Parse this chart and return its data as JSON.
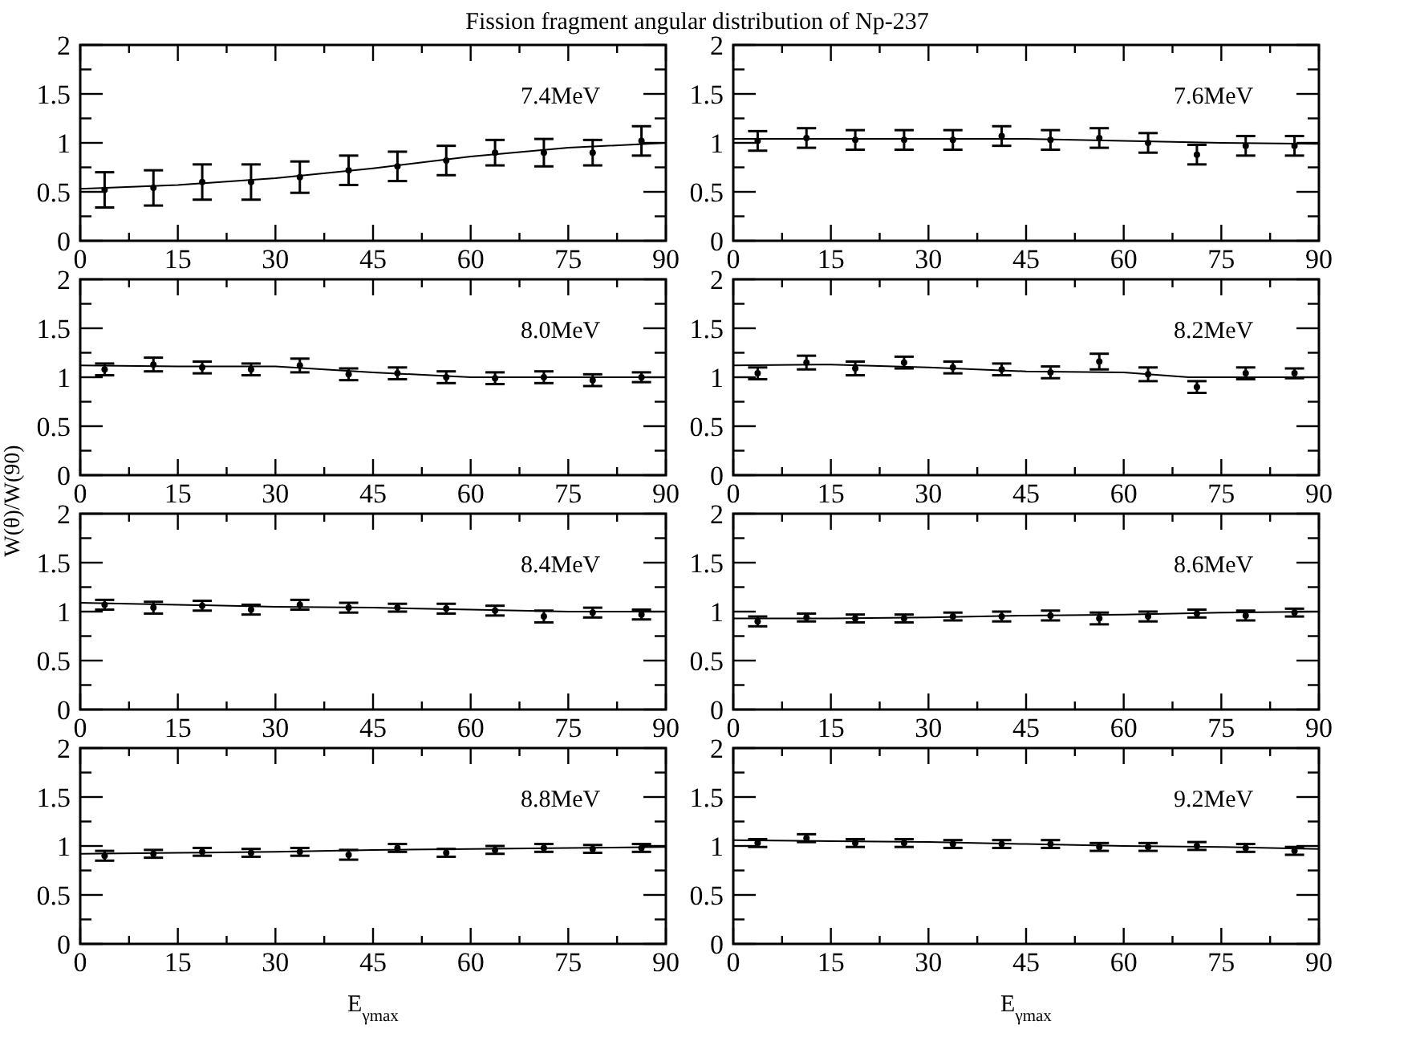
{
  "chart_data": [
    {
      "type": "scatter",
      "title": "Fission fragment angular distribution of Np-237",
      "annotations": [
        "7.4MeV"
      ],
      "x": [
        3.75,
        11.25,
        18.75,
        26.25,
        33.75,
        41.25,
        48.75,
        56.25,
        63.75,
        71.25,
        78.75,
        86.25
      ],
      "xlim": [
        0,
        90
      ],
      "ylim": [
        0,
        2
      ],
      "xticks": [
        0,
        {
          "value": 7.5,
          "label": null
        },
        15,
        {
          "value": 22.5,
          "label": null
        },
        30,
        {
          "value": 37.5,
          "label": null
        },
        45,
        {
          "value": 52.5,
          "label": null
        },
        60,
        {
          "value": 67.5,
          "label": null
        },
        75,
        {
          "value": 82.5,
          "label": null
        },
        90
      ],
      "yticks": [
        0,
        {
          "value": 0.25,
          "label": null
        },
        0.5,
        {
          "value": 0.75,
          "label": null
        },
        1,
        {
          "value": 1.25,
          "label": null
        },
        1.5,
        {
          "value": 1.75,
          "label": null
        },
        2
      ],
      "series": [
        {
          "type": "scatter",
          "marker": "circle",
          "color": "#000000",
          "values": [
            0.52,
            0.54,
            0.6,
            0.6,
            0.65,
            0.72,
            0.76,
            0.82,
            0.9,
            0.9,
            0.9,
            1.02
          ],
          "errors": [
            0.18,
            0.18,
            0.18,
            0.18,
            0.16,
            0.15,
            0.15,
            0.15,
            0.13,
            0.14,
            0.13,
            0.15
          ]
        },
        {
          "type": "line",
          "color": "#000000",
          "x": [
            0,
            15,
            30,
            45,
            60,
            75,
            90
          ],
          "values": [
            0.53,
            0.57,
            0.64,
            0.74,
            0.86,
            0.95,
            1.0
          ]
        }
      ]
    },
    {
      "type": "scatter",
      "annotations": [
        "7.6MeV"
      ],
      "x": [
        3.75,
        11.25,
        18.75,
        26.25,
        33.75,
        41.25,
        48.75,
        56.25,
        63.75,
        71.25,
        78.75,
        86.25
      ],
      "xlim": [
        0,
        90
      ],
      "ylim": [
        0,
        2
      ],
      "xticks": [
        0,
        {
          "value": 7.5,
          "label": null
        },
        15,
        {
          "value": 22.5,
          "label": null
        },
        30,
        {
          "value": 37.5,
          "label": null
        },
        45,
        {
          "value": 52.5,
          "label": null
        },
        60,
        {
          "value": 67.5,
          "label": null
        },
        75,
        {
          "value": 82.5,
          "label": null
        },
        90
      ],
      "yticks": [
        0,
        {
          "value": 0.25,
          "label": null
        },
        0.5,
        {
          "value": 0.75,
          "label": null
        },
        1,
        {
          "value": 1.25,
          "label": null
        },
        1.5,
        {
          "value": 1.75,
          "label": null
        },
        2
      ],
      "series": [
        {
          "type": "scatter",
          "marker": "circle",
          "color": "#000000",
          "values": [
            1.02,
            1.05,
            1.03,
            1.03,
            1.03,
            1.07,
            1.03,
            1.05,
            1.0,
            0.88,
            0.97,
            0.97
          ],
          "errors": [
            0.1,
            0.1,
            0.1,
            0.1,
            0.1,
            0.1,
            0.1,
            0.1,
            0.1,
            0.1,
            0.1,
            0.1
          ]
        },
        {
          "type": "line",
          "color": "#000000",
          "x": [
            0,
            15,
            30,
            45,
            60,
            75,
            90
          ],
          "values": [
            1.04,
            1.04,
            1.04,
            1.04,
            1.02,
            1.0,
            0.99
          ]
        }
      ]
    },
    {
      "type": "scatter",
      "annotations": [
        "8.0MeV"
      ],
      "x": [
        3.75,
        11.25,
        18.75,
        26.25,
        33.75,
        41.25,
        48.75,
        56.25,
        63.75,
        71.25,
        78.75,
        86.25
      ],
      "xlim": [
        0,
        90
      ],
      "ylim": [
        0,
        2
      ],
      "xticks": [
        0,
        {
          "value": 7.5,
          "label": null
        },
        15,
        {
          "value": 22.5,
          "label": null
        },
        30,
        {
          "value": 37.5,
          "label": null
        },
        45,
        {
          "value": 52.5,
          "label": null
        },
        60,
        {
          "value": 67.5,
          "label": null
        },
        75,
        {
          "value": 82.5,
          "label": null
        },
        90
      ],
      "yticks": [
        0,
        {
          "value": 0.25,
          "label": null
        },
        0.5,
        {
          "value": 0.75,
          "label": null
        },
        1,
        {
          "value": 1.25,
          "label": null
        },
        1.5,
        {
          "value": 1.75,
          "label": null
        },
        2
      ],
      "series": [
        {
          "type": "scatter",
          "marker": "circle",
          "color": "#000000",
          "values": [
            1.08,
            1.13,
            1.1,
            1.08,
            1.12,
            1.03,
            1.04,
            1.0,
            0.99,
            1.0,
            0.97,
            1.0
          ],
          "errors": [
            0.06,
            0.07,
            0.06,
            0.06,
            0.07,
            0.06,
            0.06,
            0.06,
            0.06,
            0.06,
            0.06,
            0.05
          ]
        },
        {
          "type": "line",
          "color": "#000000",
          "x": [
            0,
            15,
            30,
            45,
            60,
            75,
            90
          ],
          "values": [
            1.12,
            1.11,
            1.11,
            1.05,
            1.0,
            1.0,
            1.0
          ]
        }
      ]
    },
    {
      "type": "scatter",
      "annotations": [
        "8.2MeV"
      ],
      "x": [
        3.75,
        11.25,
        18.75,
        26.25,
        33.75,
        41.25,
        48.75,
        56.25,
        63.75,
        71.25,
        78.75,
        86.25
      ],
      "xlim": [
        0,
        90
      ],
      "ylim": [
        0,
        2
      ],
      "xticks": [
        0,
        {
          "value": 7.5,
          "label": null
        },
        15,
        {
          "value": 22.5,
          "label": null
        },
        30,
        {
          "value": 37.5,
          "label": null
        },
        45,
        {
          "value": 52.5,
          "label": null
        },
        60,
        {
          "value": 67.5,
          "label": null
        },
        75,
        {
          "value": 82.5,
          "label": null
        },
        90
      ],
      "yticks": [
        0,
        {
          "value": 0.25,
          "label": null
        },
        0.5,
        {
          "value": 0.75,
          "label": null
        },
        1,
        {
          "value": 1.25,
          "label": null
        },
        1.5,
        {
          "value": 1.75,
          "label": null
        },
        2
      ],
      "series": [
        {
          "type": "scatter",
          "marker": "circle",
          "color": "#000000",
          "values": [
            1.04,
            1.15,
            1.09,
            1.15,
            1.1,
            1.08,
            1.05,
            1.16,
            1.03,
            0.9,
            1.04,
            1.04
          ],
          "errors": [
            0.06,
            0.07,
            0.07,
            0.06,
            0.06,
            0.06,
            0.06,
            0.08,
            0.07,
            0.06,
            0.06,
            0.05
          ]
        },
        {
          "type": "line",
          "color": "#000000",
          "x": [
            0,
            15,
            30,
            45,
            60,
            70,
            90
          ],
          "values": [
            1.12,
            1.13,
            1.1,
            1.06,
            1.05,
            1.0,
            1.0
          ]
        }
      ]
    },
    {
      "type": "scatter",
      "ylabel": "W(θ)/W(90)",
      "annotations": [
        "8.4MeV"
      ],
      "x": [
        3.75,
        11.25,
        18.75,
        26.25,
        33.75,
        41.25,
        48.75,
        56.25,
        63.75,
        71.25,
        78.75,
        86.25
      ],
      "xlim": [
        0,
        90
      ],
      "ylim": [
        0,
        2
      ],
      "xticks": [
        0,
        {
          "value": 7.5,
          "label": null
        },
        15,
        {
          "value": 22.5,
          "label": null
        },
        30,
        {
          "value": 37.5,
          "label": null
        },
        45,
        {
          "value": 52.5,
          "label": null
        },
        60,
        {
          "value": 67.5,
          "label": null
        },
        75,
        {
          "value": 82.5,
          "label": null
        },
        90
      ],
      "yticks": [
        0,
        {
          "value": 0.25,
          "label": null
        },
        0.5,
        {
          "value": 0.75,
          "label": null
        },
        1,
        {
          "value": 1.25,
          "label": null
        },
        1.5,
        {
          "value": 1.75,
          "label": null
        },
        2
      ],
      "series": [
        {
          "type": "scatter",
          "marker": "circle",
          "color": "#000000",
          "values": [
            1.07,
            1.04,
            1.06,
            1.02,
            1.07,
            1.04,
            1.04,
            1.03,
            1.01,
            0.95,
            0.99,
            0.97
          ],
          "errors": [
            0.05,
            0.06,
            0.05,
            0.05,
            0.05,
            0.05,
            0.04,
            0.05,
            0.05,
            0.06,
            0.05,
            0.05
          ]
        },
        {
          "type": "line",
          "color": "#000000",
          "x": [
            0,
            15,
            30,
            45,
            60,
            75,
            90
          ],
          "values": [
            1.09,
            1.07,
            1.05,
            1.04,
            1.02,
            1.0,
            1.0
          ]
        }
      ]
    },
    {
      "type": "scatter",
      "annotations": [
        "8.6MeV"
      ],
      "x": [
        3.75,
        11.25,
        18.75,
        26.25,
        33.75,
        41.25,
        48.75,
        56.25,
        63.75,
        71.25,
        78.75,
        86.25
      ],
      "xlim": [
        0,
        90
      ],
      "ylim": [
        0,
        2
      ],
      "xticks": [
        0,
        {
          "value": 7.5,
          "label": null
        },
        15,
        {
          "value": 22.5,
          "label": null
        },
        30,
        {
          "value": 37.5,
          "label": null
        },
        45,
        {
          "value": 52.5,
          "label": null
        },
        60,
        {
          "value": 67.5,
          "label": null
        },
        75,
        {
          "value": 82.5,
          "label": null
        },
        90
      ],
      "yticks": [
        0,
        {
          "value": 0.25,
          "label": null
        },
        0.5,
        {
          "value": 0.75,
          "label": null
        },
        1,
        {
          "value": 1.25,
          "label": null
        },
        1.5,
        {
          "value": 1.75,
          "label": null
        },
        2
      ],
      "series": [
        {
          "type": "scatter",
          "marker": "circle",
          "color": "#000000",
          "values": [
            0.9,
            0.94,
            0.93,
            0.93,
            0.95,
            0.95,
            0.96,
            0.93,
            0.95,
            0.98,
            0.96,
            0.99
          ],
          "errors": [
            0.05,
            0.04,
            0.04,
            0.04,
            0.04,
            0.05,
            0.05,
            0.06,
            0.05,
            0.04,
            0.05,
            0.04
          ]
        },
        {
          "type": "line",
          "color": "#000000",
          "x": [
            0,
            15,
            30,
            45,
            60,
            75,
            90
          ],
          "values": [
            0.93,
            0.93,
            0.94,
            0.96,
            0.97,
            0.99,
            1.0
          ]
        }
      ]
    },
    {
      "type": "scatter",
      "xlabel": "E$_{γmax}$",
      "annotations": [
        "8.8MeV"
      ],
      "x": [
        3.75,
        11.25,
        18.75,
        26.25,
        33.75,
        41.25,
        48.75,
        56.25,
        63.75,
        71.25,
        78.75,
        86.25
      ],
      "xlim": [
        0,
        90
      ],
      "ylim": [
        0,
        2
      ],
      "xticks": [
        0,
        {
          "value": 7.5,
          "label": null
        },
        15,
        {
          "value": 22.5,
          "label": null
        },
        30,
        {
          "value": 37.5,
          "label": null
        },
        45,
        {
          "value": 52.5,
          "label": null
        },
        60,
        {
          "value": 67.5,
          "label": null
        },
        75,
        {
          "value": 82.5,
          "label": null
        },
        90
      ],
      "yticks": [
        0,
        {
          "value": 0.25,
          "label": null
        },
        0.5,
        {
          "value": 0.75,
          "label": null
        },
        1,
        {
          "value": 1.25,
          "label": null
        },
        1.5,
        {
          "value": 1.75,
          "label": null
        },
        2
      ],
      "series": [
        {
          "type": "scatter",
          "marker": "circle",
          "color": "#000000",
          "values": [
            0.9,
            0.92,
            0.94,
            0.93,
            0.94,
            0.91,
            0.98,
            0.93,
            0.96,
            0.98,
            0.97,
            0.98
          ],
          "errors": [
            0.05,
            0.04,
            0.04,
            0.04,
            0.04,
            0.05,
            0.04,
            0.04,
            0.04,
            0.04,
            0.04,
            0.04
          ]
        },
        {
          "type": "line",
          "color": "#000000",
          "x": [
            0,
            15,
            30,
            45,
            60,
            75,
            90
          ],
          "values": [
            0.92,
            0.93,
            0.94,
            0.96,
            0.97,
            0.98,
            0.99
          ]
        }
      ]
    },
    {
      "type": "scatter",
      "xlabel": "E$_{γmax}$",
      "annotations": [
        "9.2MeV"
      ],
      "x": [
        3.75,
        11.25,
        18.75,
        26.25,
        33.75,
        41.25,
        48.75,
        56.25,
        63.75,
        71.25,
        78.75,
        86.25
      ],
      "xlim": [
        0,
        90
      ],
      "ylim": [
        0,
        2
      ],
      "xticks": [
        0,
        {
          "value": 7.5,
          "label": null
        },
        15,
        {
          "value": 22.5,
          "label": null
        },
        30,
        {
          "value": 37.5,
          "label": null
        },
        45,
        {
          "value": 52.5,
          "label": null
        },
        60,
        {
          "value": 67.5,
          "label": null
        },
        75,
        {
          "value": 82.5,
          "label": null
        },
        90
      ],
      "yticks": [
        0,
        {
          "value": 0.25,
          "label": null
        },
        0.5,
        {
          "value": 0.75,
          "label": null
        },
        1,
        {
          "value": 1.25,
          "label": null
        },
        1.5,
        {
          "value": 1.75,
          "label": null
        },
        2
      ],
      "series": [
        {
          "type": "scatter",
          "marker": "circle",
          "color": "#000000",
          "values": [
            1.03,
            1.08,
            1.03,
            1.03,
            1.02,
            1.02,
            1.02,
            0.99,
            0.99,
            1.0,
            0.98,
            0.95
          ],
          "errors": [
            0.04,
            0.04,
            0.04,
            0.04,
            0.04,
            0.04,
            0.04,
            0.04,
            0.04,
            0.04,
            0.04,
            0.04
          ]
        },
        {
          "type": "line",
          "color": "#000000",
          "x": [
            0,
            15,
            30,
            45,
            60,
            75,
            90
          ],
          "values": [
            1.06,
            1.05,
            1.04,
            1.02,
            1.0,
            0.99,
            0.97
          ]
        }
      ]
    }
  ]
}
